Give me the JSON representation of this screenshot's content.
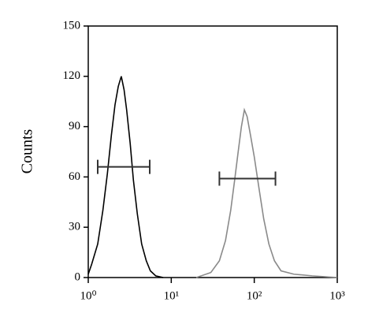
{
  "chart_data": {
    "type": "line",
    "ylabel": "Counts",
    "xlog": true,
    "xlim": [
      1,
      1000
    ],
    "ylim": [
      0,
      150
    ],
    "xticks": [
      {
        "value": 1,
        "label": "10⁰"
      },
      {
        "value": 10,
        "label": "10¹"
      },
      {
        "value": 100,
        "label": "10²"
      },
      {
        "value": 1000,
        "label": "10³"
      }
    ],
    "yticks": [
      0,
      30,
      60,
      90,
      120,
      150
    ],
    "series": [
      {
        "color": "#000000",
        "x": [
          1.0,
          1.1,
          1.3,
          1.5,
          1.7,
          1.9,
          2.1,
          2.3,
          2.5,
          2.7,
          2.9,
          3.2,
          3.5,
          3.9,
          4.4,
          5,
          5.6,
          6.5,
          8
        ],
        "values": [
          2,
          8,
          20,
          40,
          62,
          85,
          103,
          114,
          120,
          112,
          100,
          80,
          58,
          38,
          20,
          10,
          4,
          1,
          0
        ]
      },
      {
        "color": "#8a8a8a",
        "x": [
          20,
          30,
          38,
          45,
          52,
          58,
          64,
          70,
          76,
          82,
          90,
          100,
          115,
          130,
          150,
          175,
          210,
          300,
          500,
          1000
        ],
        "values": [
          0,
          3,
          10,
          22,
          40,
          58,
          75,
          90,
          100,
          96,
          85,
          72,
          52,
          35,
          20,
          10,
          4,
          2,
          1,
          0
        ]
      }
    ],
    "gates": [
      {
        "range": [
          1.3,
          5.5
        ],
        "y": 66
      },
      {
        "range": [
          38,
          180
        ],
        "y": 59
      }
    ]
  }
}
